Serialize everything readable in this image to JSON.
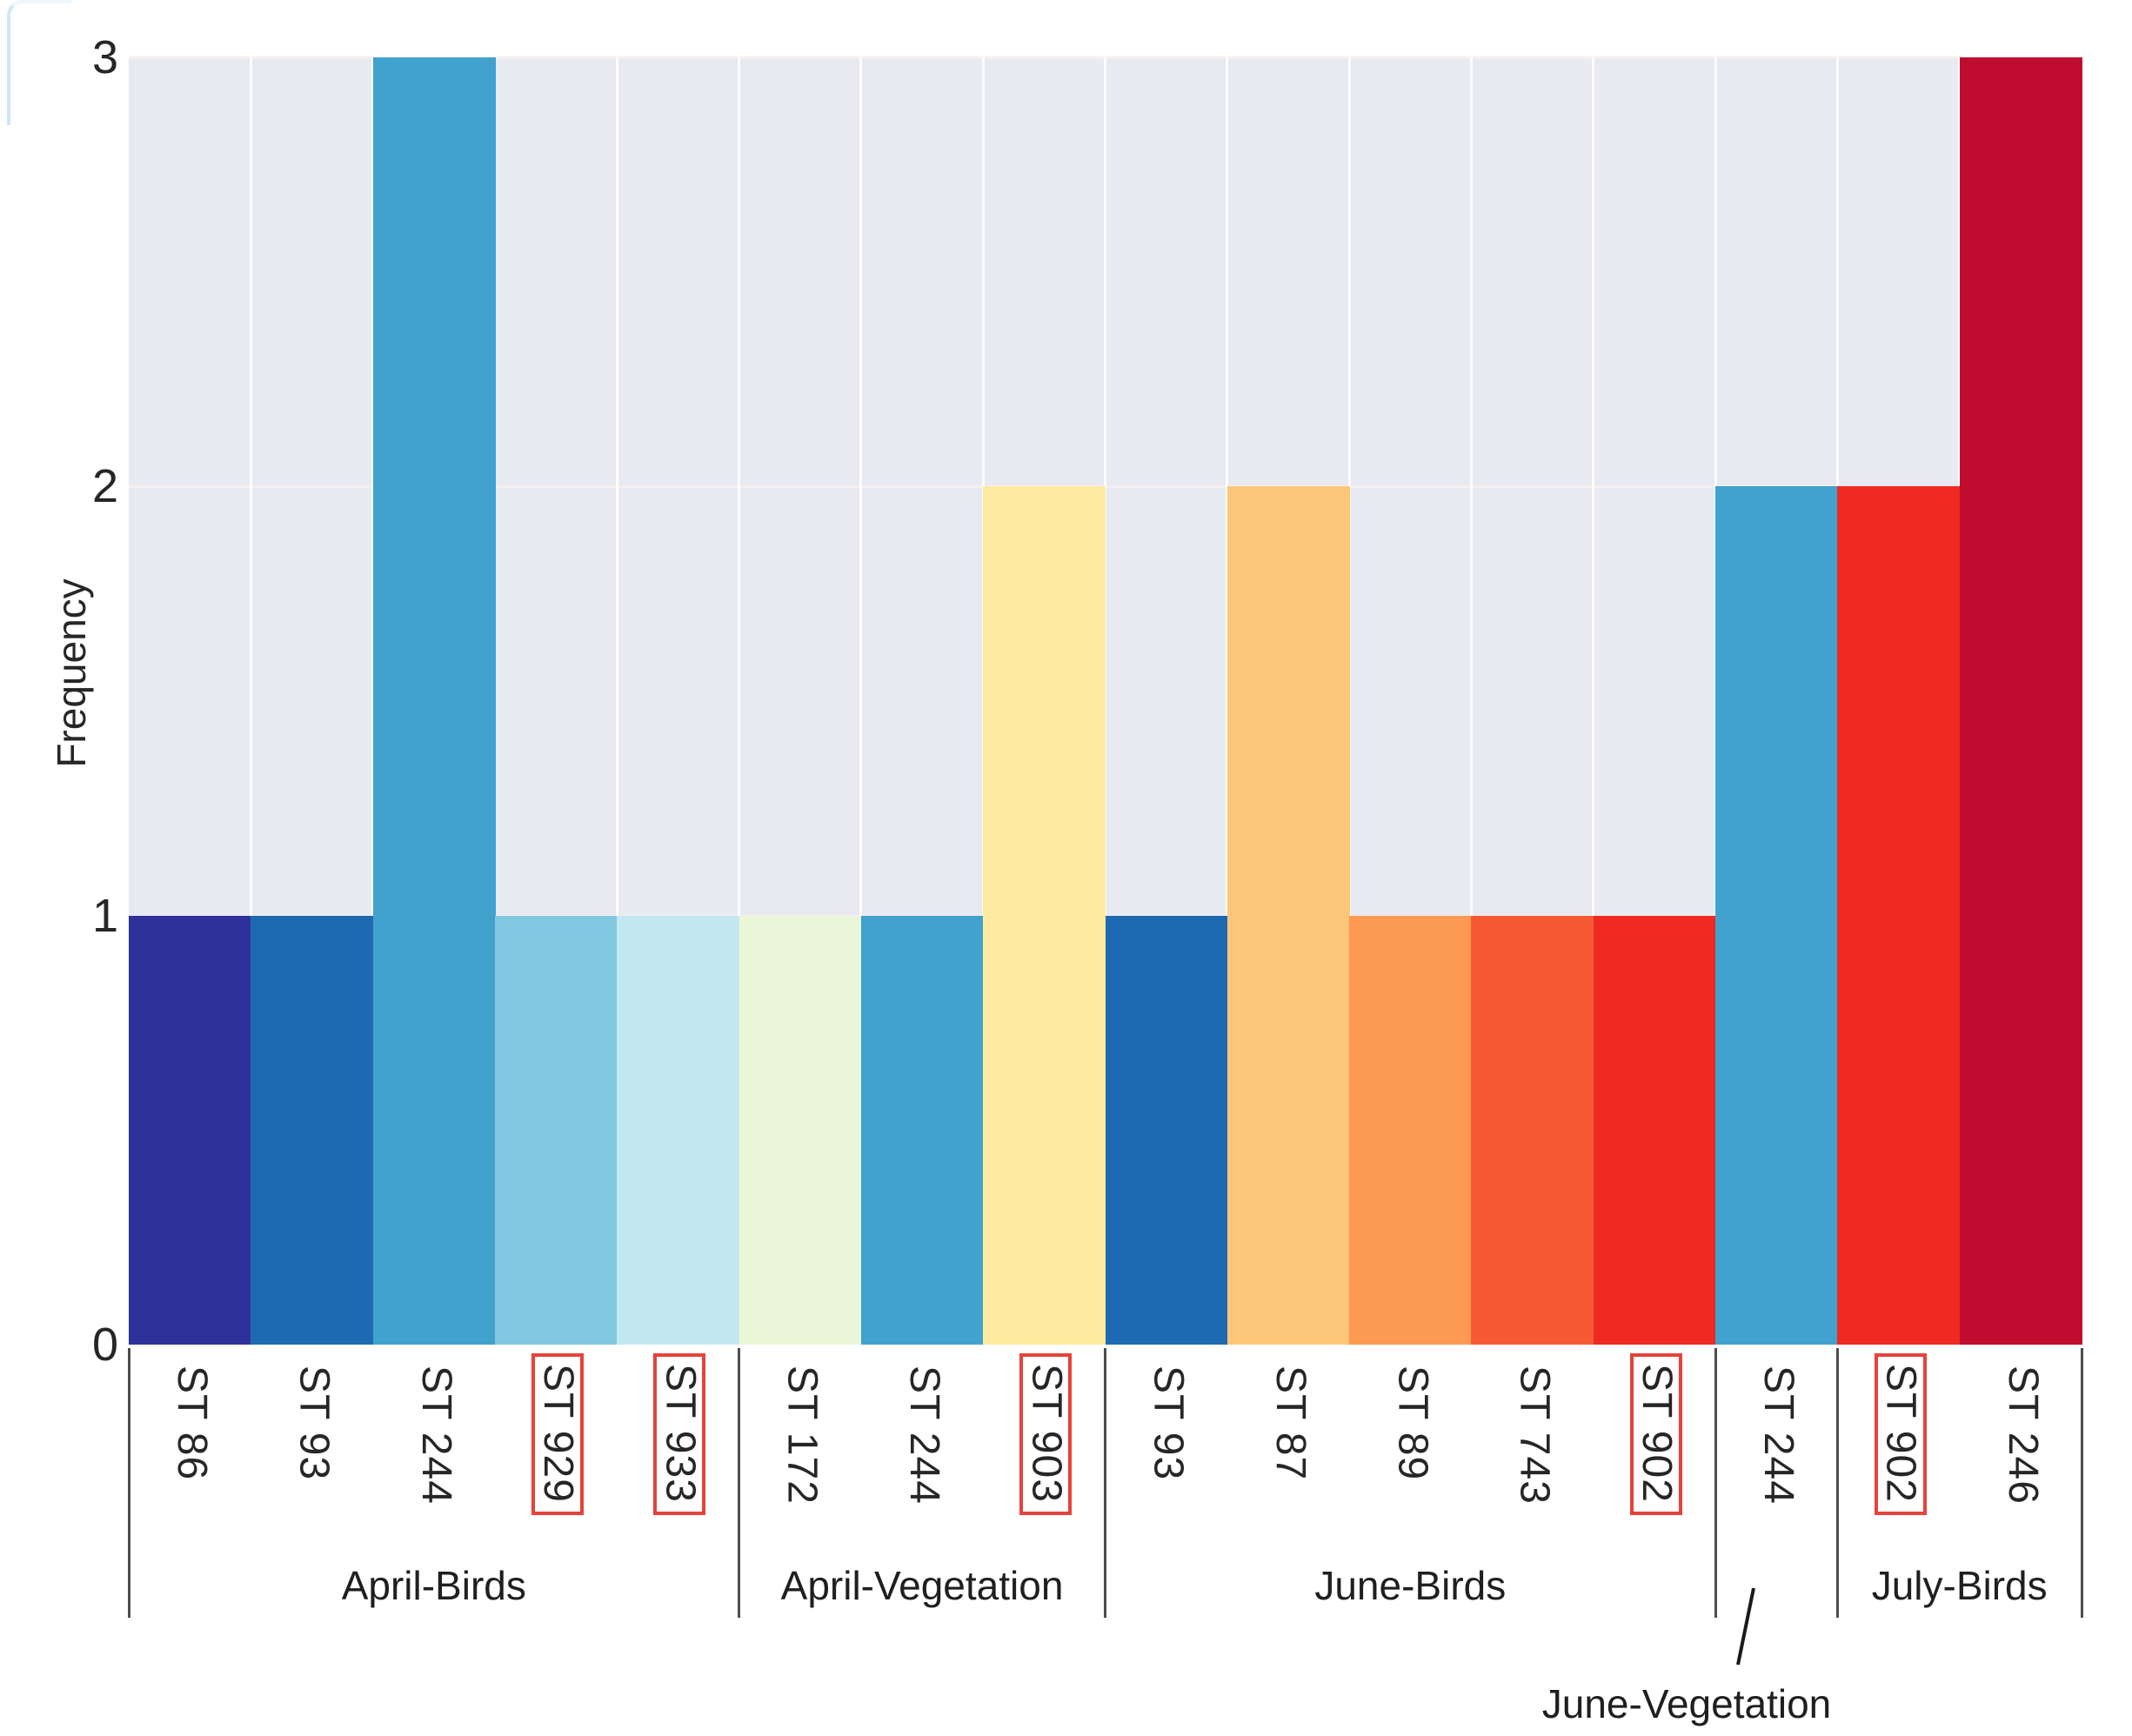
{
  "y_axis": {
    "title": "Frequency",
    "ticks": [
      "3",
      "2",
      "1",
      "0"
    ],
    "tick_values": [
      3,
      2,
      1,
      0
    ]
  },
  "chart_data": {
    "type": "bar",
    "title": "",
    "xlabel": "",
    "ylabel": "Frequency",
    "ylim": [
      0,
      3
    ],
    "yticks": [
      0,
      1,
      2,
      3
    ],
    "grid": true,
    "legend": false,
    "plot_background": "#e8e9f1",
    "horizontal_gridline_color": "#f6eef1",
    "vertical_gridline_color": "#ffffff",
    "highlight_box_color": "#e7423b",
    "categories": [
      "ST 86",
      "ST 93",
      "ST 244",
      "ST 929",
      "ST 933",
      "ST 172",
      "ST 244",
      "ST 903",
      "ST 93",
      "ST 87",
      "ST 89",
      "ST 743",
      "ST 902",
      "ST 244",
      "ST 902",
      "ST 246"
    ],
    "values": [
      1,
      1,
      3,
      1,
      1,
      1,
      1,
      2,
      1,
      2,
      1,
      1,
      1,
      2,
      2,
      3
    ],
    "colors": [
      "#2e3199",
      "#1d6ab3",
      "#41a2cd",
      "#82c8e0",
      "#c3e7f0",
      "#ebf6d8",
      "#41a2cd",
      "#fdeb9f",
      "#1d6ab3",
      "#fdc678",
      "#fc9a51",
      "#f75a33",
      "#ee2a23",
      "#41a2cd",
      "#ee2a23",
      "#c00c2e"
    ],
    "highlighted_boxed_labels": [
      false,
      false,
      false,
      true,
      true,
      false,
      false,
      true,
      false,
      false,
      false,
      false,
      true,
      false,
      true,
      false
    ],
    "groups": [
      {
        "label": "April-Birds",
        "bar_count": 5,
        "callout": false
      },
      {
        "label": "April-Vegetation",
        "bar_count": 3,
        "callout": false
      },
      {
        "label": "June-Birds",
        "bar_count": 5,
        "callout": false
      },
      {
        "label": "June-Vegetation",
        "bar_count": 1,
        "callout": true
      },
      {
        "label": "July-Birds",
        "bar_count": 2,
        "callout": false
      }
    ],
    "callout": {
      "label": "June-Vegetation"
    }
  }
}
